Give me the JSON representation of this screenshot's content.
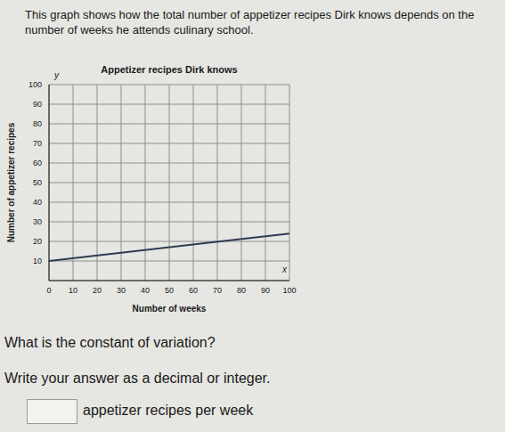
{
  "intro": "This graph shows how the total number of appetizer recipes Dirk knows depends on the number of weeks he attends culinary school.",
  "chart_data": {
    "type": "line",
    "title": "Appetizer recipes Dirk knows",
    "xlabel": "Number of weeks",
    "ylabel": "Number of appetizer recipes",
    "annotations": [
      "x",
      "y"
    ],
    "x": [
      0,
      100
    ],
    "values": [
      10,
      24
    ],
    "color": "#2f3b52",
    "xlim": [
      0,
      100
    ],
    "ylim": [
      0,
      100
    ],
    "xticks": [
      0,
      10,
      20,
      30,
      40,
      50,
      60,
      70,
      80,
      90,
      100
    ],
    "yticks": [
      10,
      20,
      30,
      40,
      50,
      60,
      70,
      80,
      90,
      100
    ],
    "grid": true
  },
  "question": "What is the constant of variation?",
  "instruction": "Write your answer as a decimal or integer.",
  "answer_unit": "appetizer recipes per week"
}
